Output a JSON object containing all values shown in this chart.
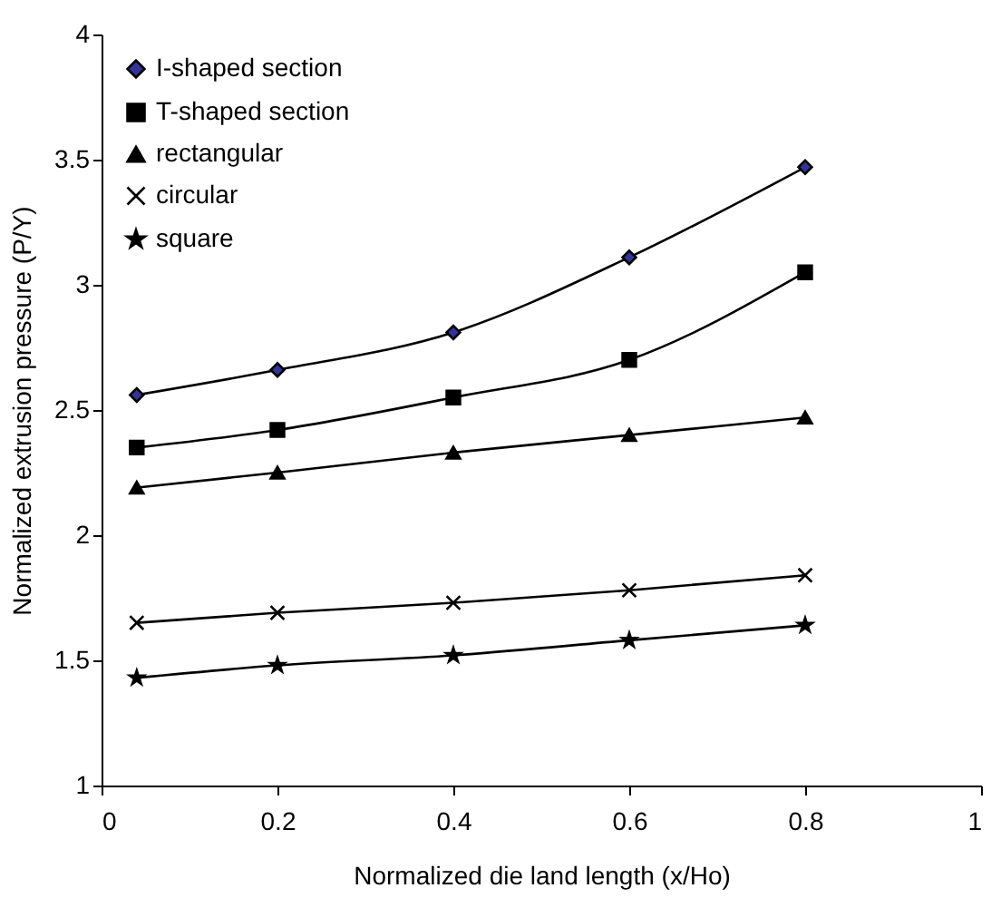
{
  "chart_data": {
    "type": "line",
    "xlabel": "Normalized die land length (x/Ho)",
    "ylabel": "Normalized extrusion pressure (P/Y)",
    "x": [
      0.04,
      0.2,
      0.4,
      0.6,
      0.8
    ],
    "series": [
      {
        "name": "I-shaped section",
        "color": "#333399",
        "marker": "diamond",
        "values": [
          2.56,
          2.66,
          2.81,
          3.11,
          3.47
        ]
      },
      {
        "name": "T-shaped section",
        "color": "#000000",
        "marker": "square",
        "values": [
          2.35,
          2.42,
          2.55,
          2.7,
          3.05
        ]
      },
      {
        "name": "rectangular",
        "color": "#000000",
        "marker": "triangle",
        "values": [
          2.19,
          2.25,
          2.33,
          2.4,
          2.47
        ]
      },
      {
        "name": "circular",
        "color": "#000000",
        "marker": "cross",
        "values": [
          1.65,
          1.69,
          1.73,
          1.78,
          1.84
        ]
      },
      {
        "name": "square",
        "color": "#000000",
        "marker": "star",
        "values": [
          1.43,
          1.48,
          1.52,
          1.58,
          1.64
        ]
      }
    ],
    "xlim": [
      0,
      1
    ],
    "xticks": [
      0,
      0.2,
      0.4,
      0.6,
      0.8,
      1
    ],
    "ylim": [
      1,
      4
    ],
    "yticks": [
      1,
      1.5,
      2,
      2.5,
      3,
      3.5,
      4
    ],
    "grid": false,
    "legend": "top left",
    "line_style": "solid"
  }
}
